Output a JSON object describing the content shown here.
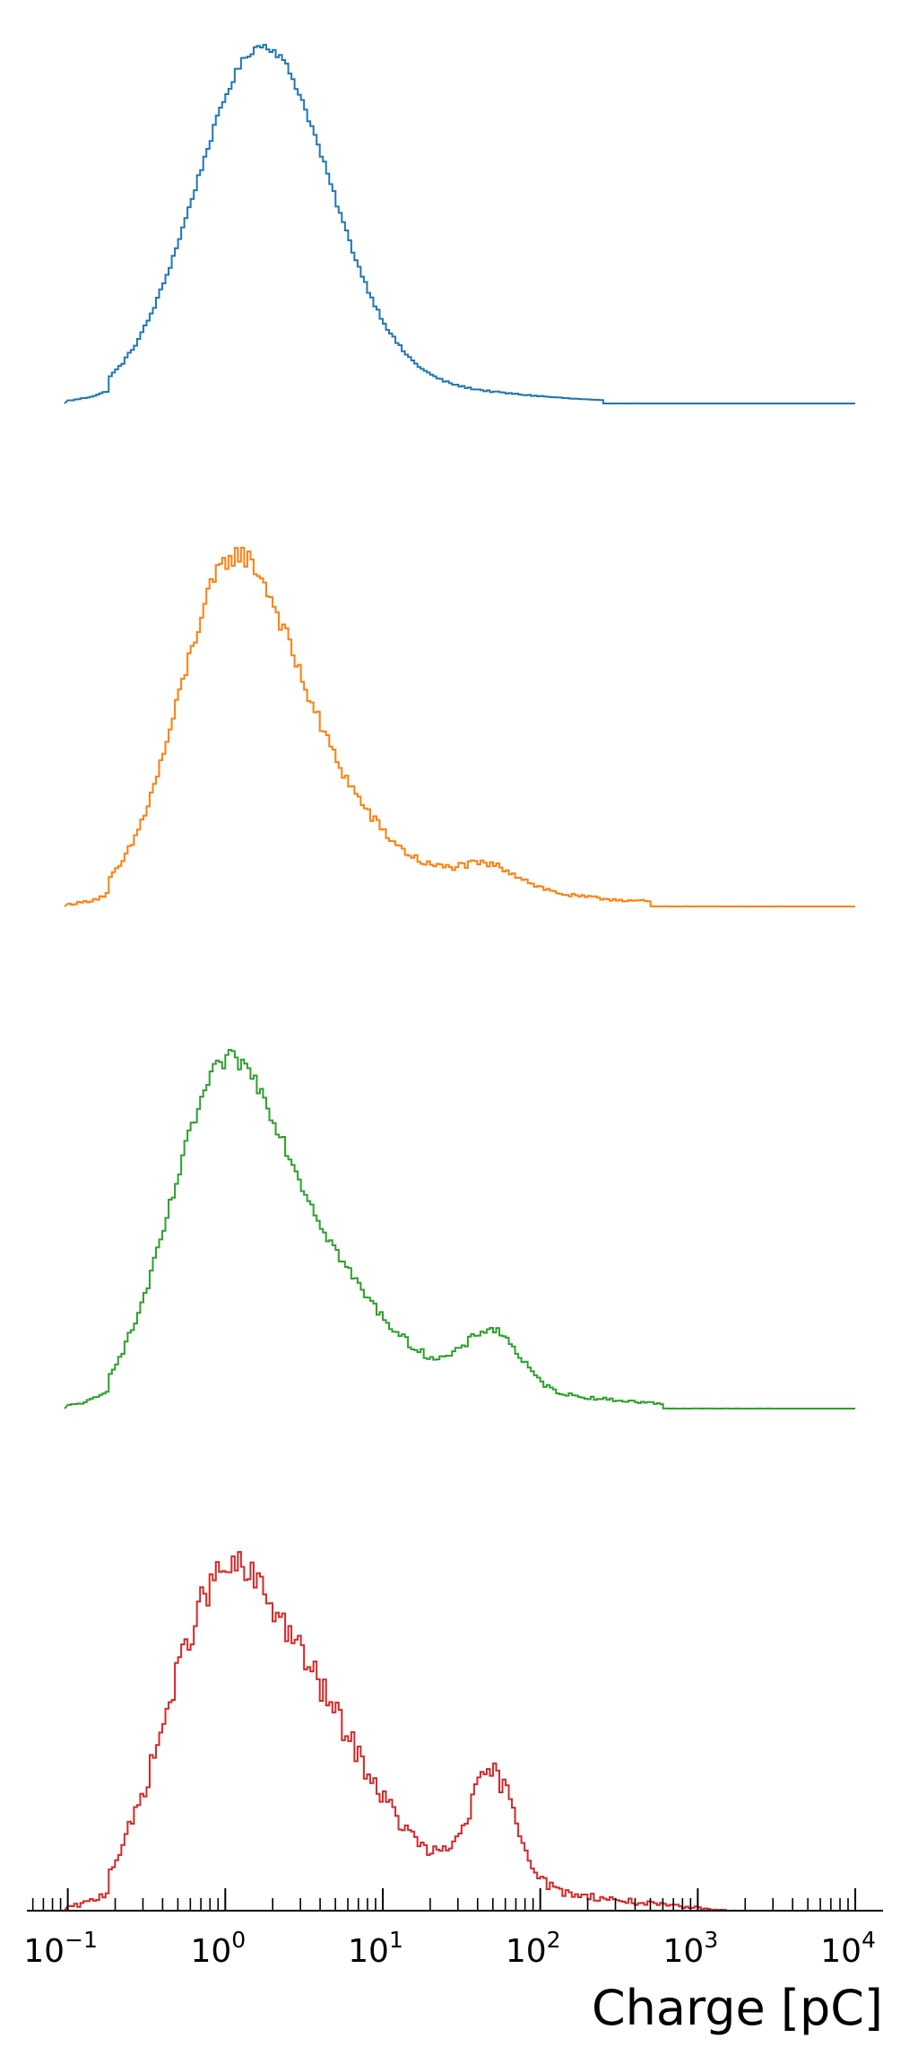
{
  "chart_data": {
    "type": "line",
    "xlabel": "Charge [pC]",
    "xscale": "log",
    "xlim": [
      0.055,
      15000
    ],
    "xticks": [
      {
        "value": 0.1,
        "base": "10",
        "exp": "−1"
      },
      {
        "value": 1,
        "base": "10",
        "exp": "0"
      },
      {
        "value": 10,
        "base": "10",
        "exp": "1"
      },
      {
        "value": 100,
        "base": "10",
        "exp": "2"
      },
      {
        "value": 1000,
        "base": "10",
        "exp": "3"
      },
      {
        "value": 10000,
        "base": "10",
        "exp": "4"
      }
    ],
    "grid": false,
    "legend": "none",
    "style": "stacked step histograms, each panel normalized to its own peak",
    "series": [
      {
        "color": "#1f77b4",
        "range": [
          0.1,
          10000
        ],
        "peaks": [
          {
            "center": 1.7,
            "sigma": 0.42,
            "amp": 1.0
          },
          {
            "center": 3.5,
            "sigma": 0.6,
            "amp": 0.06
          },
          {
            "center": 50,
            "sigma": 0.45,
            "amp": 0.014
          },
          {
            "center": 12,
            "sigma": 0.9,
            "amp": 0.012
          }
        ],
        "nonzero_until": 250,
        "noise": 0.012
      },
      {
        "color": "#ff7f0e",
        "range": [
          0.1,
          10000
        ],
        "peaks": [
          {
            "center": 1.0,
            "sigma": 0.33,
            "amp": 0.92
          },
          {
            "center": 2.6,
            "sigma": 0.42,
            "amp": 0.42
          },
          {
            "center": 6.0,
            "sigma": 0.7,
            "amp": 0.1
          },
          {
            "center": 48,
            "sigma": 0.2,
            "amp": 0.08
          },
          {
            "center": 100,
            "sigma": 0.7,
            "amp": 0.025
          }
        ],
        "nonzero_until": 500,
        "noise": 0.035
      },
      {
        "color": "#2ca02c",
        "range": [
          0.1,
          10000
        ],
        "peaks": [
          {
            "center": 0.9,
            "sigma": 0.33,
            "amp": 0.9
          },
          {
            "center": 2.7,
            "sigma": 0.45,
            "amp": 0.45
          },
          {
            "center": 6.0,
            "sigma": 0.7,
            "amp": 0.12
          },
          {
            "center": 50,
            "sigma": 0.17,
            "amp": 0.2
          },
          {
            "center": 120,
            "sigma": 0.6,
            "amp": 0.03
          }
        ],
        "nonzero_until": 600,
        "noise": 0.03
      },
      {
        "color": "#d62728",
        "range": [
          0.1,
          10000
        ],
        "peaks": [
          {
            "center": 0.8,
            "sigma": 0.33,
            "amp": 0.85
          },
          {
            "center": 2.8,
            "sigma": 0.42,
            "amp": 0.62
          },
          {
            "center": 6.5,
            "sigma": 0.6,
            "amp": 0.15
          },
          {
            "center": 50,
            "sigma": 0.15,
            "amp": 0.4
          },
          {
            "center": 120,
            "sigma": 0.5,
            "amp": 0.05
          }
        ],
        "nonzero_until": 1500,
        "noise": 0.06
      }
    ]
  }
}
